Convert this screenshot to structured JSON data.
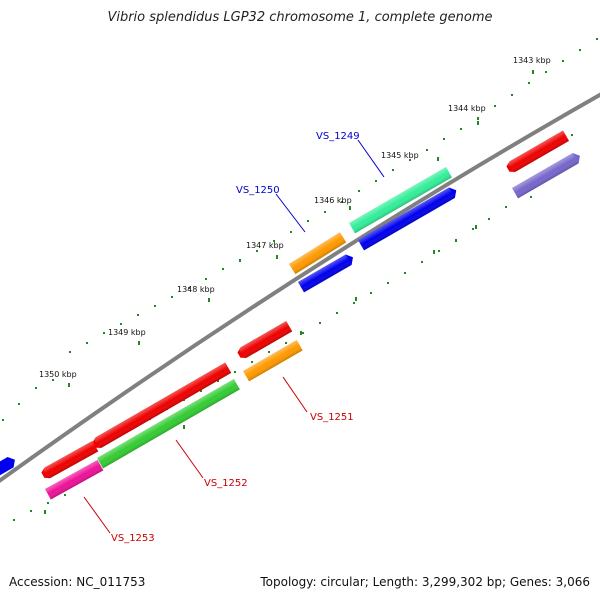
{
  "title": "Vibrio splendidus LGP32 chromosome 1, complete genome",
  "footer": {
    "accession_label": "Accession:",
    "accession": "NC_011753",
    "summary": "Topology: circular; Length: 3,299,302 bp; Genes: 3,066"
  },
  "ticks": [
    "1343 kbp",
    "1344 kbp",
    "1345 kbp",
    "1346 kbp",
    "1347 kbp",
    "1348 kbp",
    "1349 kbp",
    "1350 kbp"
  ],
  "genes": [
    {
      "label": "VS_1249",
      "color": "#33ee99",
      "label_color": "#0000cc"
    },
    {
      "label": "VS_1250",
      "color": "#ff9900",
      "label_color": "#0000cc"
    },
    {
      "label": "VS_1251",
      "color": "#ff9900",
      "label_color": "#cc0000"
    },
    {
      "label": "VS_1252",
      "color": "#33cc33",
      "label_color": "#cc0000"
    },
    {
      "label": "VS_1253",
      "color": "#ee1199",
      "label_color": "#cc0000"
    }
  ],
  "other_feature_colors": {
    "rna_red": "#ee0000",
    "cds_blue": "#0000ee",
    "purple": "#7766cc"
  }
}
